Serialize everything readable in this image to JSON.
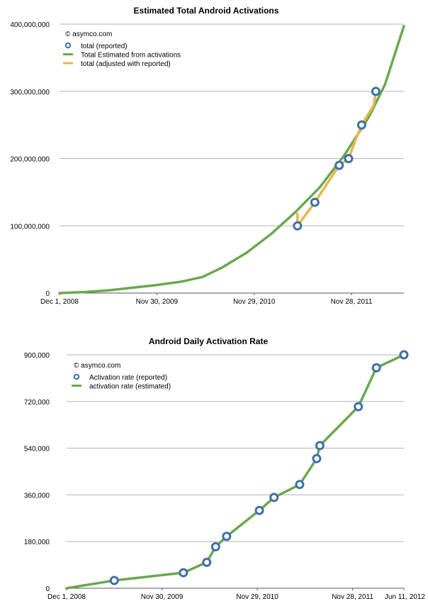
{
  "colors": {
    "reported_marker": "#3f6fa9",
    "estimated_line": "#6aa84f",
    "adjusted_line": "#ecb44f",
    "grid": "#b3b3b3"
  },
  "chart_data": [
    {
      "type": "line",
      "title": "Estimated Total Android Activations",
      "watermark": "© asymco.com",
      "xlabel": "",
      "ylabel": "",
      "y_ticks": [
        "0",
        "100,000,000",
        "200,000,000",
        "300,000,000",
        "400,000,000"
      ],
      "y_tick_values": [
        0,
        100000000,
        200000000,
        300000000,
        400000000
      ],
      "ylim": [
        0,
        400000000
      ],
      "x_ticks": [
        "Dec 1, 2008",
        "Nov 30, 2009",
        "Nov 29, 2010",
        "Nov 28, 2011"
      ],
      "x_tick_dates": [
        "2008-12-01",
        "2009-11-30",
        "2010-11-29",
        "2011-11-28"
      ],
      "xlim": [
        "2008-12-01",
        "2012-06-11"
      ],
      "grid": true,
      "legend_position": "top-left",
      "series": [
        {
          "name": "total (reported)",
          "style": "markers",
          "points": [
            [
              "2011-05-10",
              100000000
            ],
            [
              "2011-07-14",
              135000000
            ],
            [
              "2011-10-13",
              190000000
            ],
            [
              "2011-11-17",
              200000000
            ],
            [
              "2012-01-05",
              250000000
            ],
            [
              "2012-02-27",
              300000000
            ]
          ]
        },
        {
          "name": "Total Estimated from activations",
          "style": "line",
          "points": [
            [
              "2008-12-01",
              0
            ],
            [
              "2009-03-01",
              1500000
            ],
            [
              "2009-06-01",
              4000000
            ],
            [
              "2009-09-01",
              8000000
            ],
            [
              "2009-12-01",
              12000000
            ],
            [
              "2010-03-01",
              17000000
            ],
            [
              "2010-05-20",
              24000000
            ],
            [
              "2010-08-01",
              38000000
            ],
            [
              "2010-11-01",
              60000000
            ],
            [
              "2011-02-01",
              88000000
            ],
            [
              "2011-05-01",
              120000000
            ],
            [
              "2011-08-01",
              157000000
            ],
            [
              "2011-11-01",
              205000000
            ],
            [
              "2012-02-01",
              262000000
            ],
            [
              "2012-04-01",
              310000000
            ],
            [
              "2012-06-11",
              397000000
            ]
          ]
        },
        {
          "name": "total (adjusted with reported)",
          "style": "line",
          "points": [
            [
              "2011-05-10",
              100000000
            ],
            [
              "2011-05-10",
              118000000
            ],
            [
              "2011-05-10",
              100000000
            ],
            [
              "2011-07-14",
              135000000
            ],
            [
              "2011-10-13",
              190000000
            ],
            [
              "2011-11-17",
              200000000
            ],
            [
              "2011-12-15",
              230000000
            ],
            [
              "2012-01-05",
              250000000
            ],
            [
              "2012-02-20",
              280000000
            ],
            [
              "2012-02-27",
              300000000
            ]
          ]
        }
      ]
    },
    {
      "type": "line",
      "title": "Android Daily Activation Rate",
      "watermark": "© asymco.com",
      "xlabel": "",
      "ylabel": "",
      "y_ticks": [
        "0",
        "180,000",
        "360,000",
        "540,000",
        "720,000",
        "900,000"
      ],
      "y_tick_values": [
        0,
        180000,
        360000,
        540000,
        720000,
        900000
      ],
      "ylim": [
        0,
        900000
      ],
      "x_ticks": [
        "Dec 1, 2008",
        "Nov 30, 2009",
        "Nov 29, 2010",
        "Nov 28, 2011",
        "Jun 11, 2012"
      ],
      "x_tick_dates": [
        "2008-12-01",
        "2009-11-30",
        "2010-11-29",
        "2011-11-28",
        "2012-06-11"
      ],
      "xlim": [
        "2008-12-01",
        "2012-06-11"
      ],
      "grid": true,
      "legend_position": "top-left",
      "series": [
        {
          "name": "Activation rate (reported)",
          "style": "markers",
          "points": [
            [
              "2009-06-01",
              30000
            ],
            [
              "2010-02-20",
              60000
            ],
            [
              "2010-05-20",
              100000
            ],
            [
              "2010-06-23",
              160000
            ],
            [
              "2010-08-04",
              200000
            ],
            [
              "2010-12-07",
              300000
            ],
            [
              "2011-02-01",
              350000
            ],
            [
              "2011-05-10",
              400000
            ],
            [
              "2011-07-14",
              500000
            ],
            [
              "2011-07-26",
              550000
            ],
            [
              "2011-12-20",
              700000
            ],
            [
              "2012-02-27",
              850000
            ],
            [
              "2012-06-11",
              900000
            ]
          ]
        },
        {
          "name": "activation rate (estimated)",
          "style": "line",
          "points": [
            [
              "2008-12-01",
              0
            ],
            [
              "2009-06-01",
              30000
            ],
            [
              "2010-02-20",
              60000
            ],
            [
              "2010-05-20",
              100000
            ],
            [
              "2010-06-23",
              160000
            ],
            [
              "2010-08-04",
              200000
            ],
            [
              "2010-12-07",
              300000
            ],
            [
              "2011-02-01",
              350000
            ],
            [
              "2011-05-10",
              400000
            ],
            [
              "2011-07-14",
              500000
            ],
            [
              "2011-07-26",
              550000
            ],
            [
              "2011-12-20",
              700000
            ],
            [
              "2012-02-27",
              850000
            ],
            [
              "2012-06-11",
              900000
            ]
          ]
        }
      ]
    }
  ]
}
